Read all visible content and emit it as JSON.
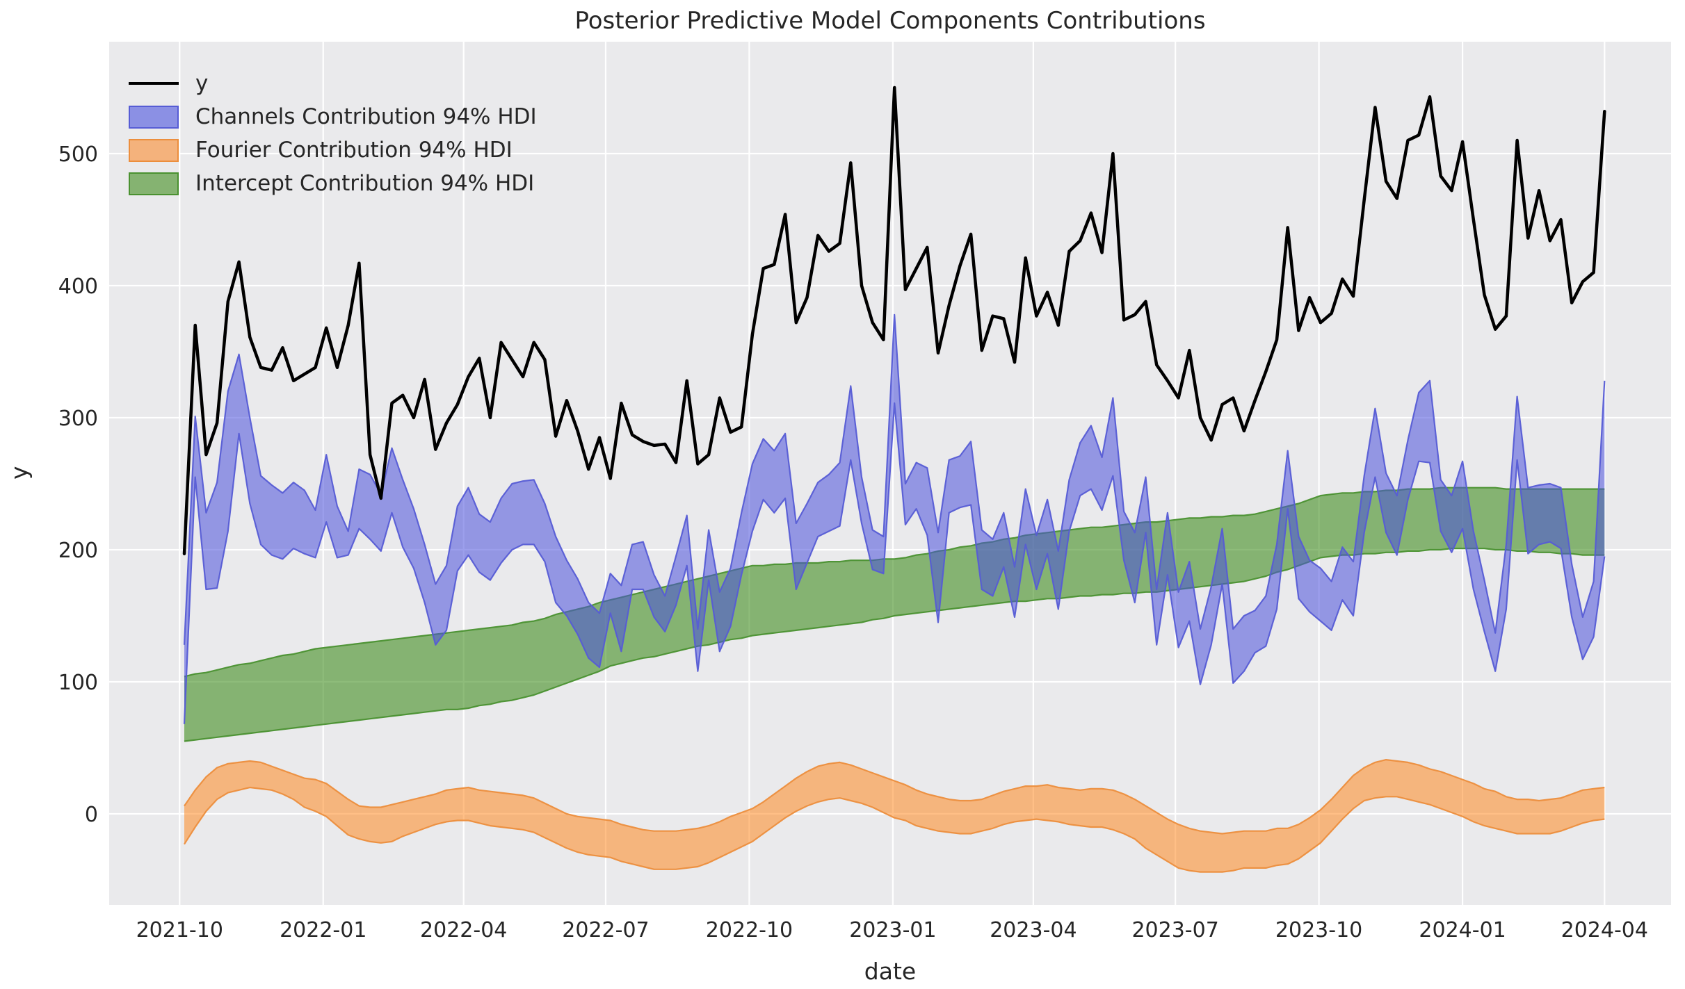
{
  "title": "Posterior Predictive Model Components Contributions",
  "xlabel": "date",
  "ylabel": "y",
  "colors": {
    "figure_bg": "#ffffff",
    "axes_bg": "#eaeaec",
    "grid": "#ffffff",
    "text": "#262626",
    "y_line": "#000000",
    "channels_fill": "#4a50dc",
    "channels_edge": "#565cd5",
    "fourier_fill": "#ff7f0e",
    "fourier_edge": "#ec8e3d",
    "intercept_fill": "#358812",
    "intercept_edge": "#4a9130"
  },
  "legend": {
    "items": [
      {
        "label": "y",
        "swatch": "line",
        "color": "#000000"
      },
      {
        "label": "Channels Contribution 94% HDI",
        "swatch": "patch",
        "fill": "#8b90e4",
        "edge": "#565cd5"
      },
      {
        "label": "Fourier Contribution 94% HDI",
        "swatch": "patch",
        "fill": "#f4b27c",
        "edge": "#ec8e3d"
      },
      {
        "label": "Intercept Contribution 94% HDI",
        "swatch": "patch",
        "fill": "#85b371",
        "edge": "#4a9130"
      }
    ]
  },
  "chart_data": {
    "type": "line",
    "title": "Posterior Predictive Model Components Contributions",
    "xlabel": "date",
    "ylabel": "y",
    "grid": true,
    "legend_position": "upper left",
    "ylim": [
      -62,
      585
    ],
    "y_ticks": [
      0,
      100,
      200,
      300,
      400,
      500
    ],
    "x_ticks": [
      {
        "date": "2021-10-01",
        "label": "2021-10"
      },
      {
        "date": "2022-01-01",
        "label": "2022-01"
      },
      {
        "date": "2022-04-01",
        "label": "2022-04"
      },
      {
        "date": "2022-07-01",
        "label": "2022-07"
      },
      {
        "date": "2022-10-01",
        "label": "2022-10"
      },
      {
        "date": "2023-01-01",
        "label": "2023-01"
      },
      {
        "date": "2023-04-01",
        "label": "2023-04"
      },
      {
        "date": "2023-07-01",
        "label": "2023-07"
      },
      {
        "date": "2023-10-01",
        "label": "2023-10"
      },
      {
        "date": "2024-01-01",
        "label": "2024-01"
      },
      {
        "date": "2024-04-01",
        "label": "2024-04"
      }
    ],
    "dates": [
      "2021-10-04",
      "2021-10-11",
      "2021-10-18",
      "2021-10-25",
      "2021-11-01",
      "2021-11-08",
      "2021-11-15",
      "2021-11-22",
      "2021-11-29",
      "2021-12-06",
      "2021-12-13",
      "2021-12-20",
      "2021-12-27",
      "2022-01-03",
      "2022-01-10",
      "2022-01-17",
      "2022-01-24",
      "2022-01-31",
      "2022-02-07",
      "2022-02-14",
      "2022-02-21",
      "2022-02-28",
      "2022-03-07",
      "2022-03-14",
      "2022-03-21",
      "2022-03-28",
      "2022-04-04",
      "2022-04-11",
      "2022-04-18",
      "2022-04-25",
      "2022-05-02",
      "2022-05-09",
      "2022-05-16",
      "2022-05-23",
      "2022-05-30",
      "2022-06-06",
      "2022-06-13",
      "2022-06-20",
      "2022-06-27",
      "2022-07-04",
      "2022-07-11",
      "2022-07-18",
      "2022-07-25",
      "2022-08-01",
      "2022-08-08",
      "2022-08-15",
      "2022-08-22",
      "2022-08-29",
      "2022-09-05",
      "2022-09-12",
      "2022-09-19",
      "2022-09-26",
      "2022-10-03",
      "2022-10-10",
      "2022-10-17",
      "2022-10-24",
      "2022-10-31",
      "2022-11-07",
      "2022-11-14",
      "2022-11-21",
      "2022-11-28",
      "2022-12-05",
      "2022-12-12",
      "2022-12-19",
      "2022-12-26",
      "2023-01-02",
      "2023-01-09",
      "2023-01-16",
      "2023-01-23",
      "2023-01-30",
      "2023-02-06",
      "2023-02-13",
      "2023-02-20",
      "2023-02-27",
      "2023-03-06",
      "2023-03-13",
      "2023-03-20",
      "2023-03-27",
      "2023-04-03",
      "2023-04-10",
      "2023-04-17",
      "2023-04-24",
      "2023-05-01",
      "2023-05-08",
      "2023-05-15",
      "2023-05-22",
      "2023-05-29",
      "2023-06-05",
      "2023-06-12",
      "2023-06-19",
      "2023-06-26",
      "2023-07-03",
      "2023-07-10",
      "2023-07-17",
      "2023-07-24",
      "2023-07-31",
      "2023-08-07",
      "2023-08-14",
      "2023-08-21",
      "2023-08-28",
      "2023-09-04",
      "2023-09-11",
      "2023-09-18",
      "2023-09-25",
      "2023-10-02",
      "2023-10-09",
      "2023-10-16",
      "2023-10-23",
      "2023-10-30",
      "2023-11-06",
      "2023-11-13",
      "2023-11-20",
      "2023-11-27",
      "2023-12-04",
      "2023-12-11",
      "2023-12-18",
      "2023-12-25",
      "2024-01-01",
      "2024-01-08",
      "2024-01-15",
      "2024-01-22",
      "2024-01-29",
      "2024-02-05",
      "2024-02-12",
      "2024-02-19",
      "2024-02-26",
      "2024-03-04",
      "2024-03-11",
      "2024-03-18",
      "2024-03-25",
      "2024-04-01"
    ],
    "series": [
      {
        "name": "y",
        "style": "line",
        "values": [
          197,
          370,
          272,
          296,
          388,
          418,
          361,
          338,
          336,
          353,
          328,
          333,
          338,
          368,
          338,
          370,
          417,
          272,
          239,
          311,
          317,
          300,
          329,
          276,
          296,
          310,
          331,
          345,
          300,
          357,
          344,
          331,
          357,
          344,
          286,
          313,
          290,
          261,
          285,
          254,
          311,
          287,
          282,
          279,
          280,
          266,
          328,
          265,
          272,
          315,
          289,
          293,
          363,
          413,
          416,
          454,
          372,
          391,
          438,
          426,
          432,
          493,
          400,
          372,
          359,
          550,
          397,
          413,
          429,
          349,
          385,
          415,
          439,
          351,
          377,
          375,
          342,
          421,
          377,
          395,
          370,
          426,
          434,
          455,
          425,
          500,
          374,
          378,
          388,
          340,
          328,
          315,
          351,
          300,
          283,
          310,
          315,
          290,
          313,
          335,
          359,
          444,
          366,
          391,
          372,
          379,
          405,
          392,
          465,
          535,
          479,
          466,
          510,
          514,
          543,
          483,
          472,
          509,
          450,
          393,
          367,
          377,
          510,
          436,
          472,
          434,
          450,
          387,
          403,
          410,
          532
        ]
      },
      {
        "name": "Channels Contribution 94% HDI",
        "style": "band",
        "upper": [
          128,
          301,
          228,
          251,
          320,
          348,
          300,
          256,
          249,
          243,
          251,
          245,
          230,
          272,
          233,
          214,
          261,
          257,
          242,
          277,
          253,
          231,
          204,
          174,
          188,
          233,
          247,
          227,
          221,
          239,
          250,
          252,
          253,
          235,
          210,
          192,
          178,
          160,
          152,
          182,
          173,
          204,
          206,
          181,
          165,
          195,
          226,
          140,
          215,
          168,
          186,
          228,
          265,
          284,
          275,
          288,
          220,
          235,
          251,
          257,
          266,
          324,
          255,
          215,
          210,
          378,
          250,
          266,
          262,
          213,
          268,
          271,
          282,
          215,
          208,
          228,
          187,
          246,
          211,
          238,
          199,
          253,
          281,
          294,
          270,
          315,
          229,
          213,
          255,
          170,
          228,
          168,
          191,
          140,
          172,
          216,
          140,
          150,
          154,
          165,
          204,
          275,
          210,
          192,
          186,
          176,
          202,
          191,
          256,
          307,
          258,
          241,
          283,
          319,
          328,
          253,
          241,
          267,
          214,
          177,
          137,
          204,
          316,
          247,
          249,
          250,
          247,
          189,
          149,
          176,
          328
        ],
        "lower": [
          68,
          255,
          170,
          171,
          214,
          288,
          235,
          204,
          196,
          193,
          201,
          197,
          194,
          221,
          194,
          196,
          216,
          208,
          199,
          228,
          202,
          186,
          160,
          128,
          139,
          184,
          196,
          183,
          177,
          190,
          200,
          204,
          204,
          191,
          160,
          150,
          136,
          118,
          111,
          152,
          123,
          170,
          170,
          149,
          138,
          158,
          188,
          108,
          177,
          123,
          142,
          181,
          214,
          238,
          228,
          239,
          170,
          190,
          210,
          214,
          218,
          268,
          220,
          185,
          182,
          311,
          219,
          231,
          211,
          145,
          228,
          232,
          234,
          170,
          165,
          187,
          149,
          204,
          170,
          197,
          155,
          214,
          241,
          246,
          230,
          256,
          192,
          160,
          213,
          128,
          181,
          126,
          146,
          98,
          128,
          174,
          99,
          108,
          122,
          127,
          155,
          231,
          163,
          153,
          146,
          139,
          162,
          150,
          213,
          255,
          213,
          196,
          238,
          267,
          266,
          214,
          198,
          216,
          170,
          138,
          108,
          155,
          268,
          197,
          204,
          206,
          201,
          149,
          117,
          134,
          195
        ]
      },
      {
        "name": "Fourier Contribution 94% HDI",
        "style": "band",
        "upper": [
          6,
          18,
          28,
          35,
          38,
          39,
          40,
          39,
          36,
          33,
          30,
          27,
          26,
          23,
          17,
          11,
          6,
          5,
          5,
          7,
          9,
          11,
          13,
          15,
          18,
          19,
          20,
          18,
          17,
          16,
          15,
          14,
          12,
          8,
          4,
          0,
          -2,
          -3,
          -4,
          -5,
          -8,
          -10,
          -12,
          -13,
          -13,
          -13,
          -12,
          -11,
          -9,
          -6,
          -2,
          1,
          4,
          9,
          15,
          21,
          27,
          32,
          36,
          38,
          39,
          37,
          34,
          31,
          28,
          25,
          22,
          18,
          15,
          13,
          11,
          10,
          10,
          11,
          14,
          17,
          19,
          21,
          21,
          22,
          20,
          19,
          18,
          19,
          19,
          18,
          15,
          11,
          6,
          1,
          -4,
          -8,
          -11,
          -13,
          -14,
          -15,
          -14,
          -13,
          -13,
          -13,
          -11,
          -11,
          -8,
          -3,
          3,
          11,
          20,
          29,
          35,
          39,
          41,
          40,
          39,
          37,
          34,
          32,
          29,
          26,
          23,
          19,
          17,
          13,
          11,
          11,
          10,
          11,
          12,
          15,
          18,
          19,
          20
        ],
        "lower": [
          -23,
          -10,
          2,
          11,
          16,
          18,
          20,
          19,
          18,
          15,
          11,
          5,
          2,
          -2,
          -9,
          -16,
          -19,
          -21,
          -22,
          -21,
          -17,
          -14,
          -11,
          -8,
          -6,
          -5,
          -5,
          -7,
          -9,
          -10,
          -11,
          -12,
          -14,
          -18,
          -22,
          -26,
          -29,
          -31,
          -32,
          -33,
          -36,
          -38,
          -40,
          -42,
          -42,
          -42,
          -41,
          -40,
          -37,
          -33,
          -29,
          -25,
          -21,
          -15,
          -9,
          -3,
          2,
          6,
          9,
          11,
          12,
          10,
          8,
          5,
          1,
          -3,
          -5,
          -9,
          -11,
          -13,
          -14,
          -15,
          -15,
          -13,
          -11,
          -8,
          -6,
          -5,
          -4,
          -5,
          -6,
          -8,
          -9,
          -10,
          -10,
          -12,
          -15,
          -19,
          -26,
          -31,
          -36,
          -41,
          -43,
          -44,
          -44,
          -44,
          -43,
          -41,
          -41,
          -41,
          -39,
          -38,
          -34,
          -28,
          -22,
          -13,
          -4,
          4,
          10,
          12,
          13,
          13,
          11,
          9,
          7,
          4,
          1,
          -2,
          -6,
          -9,
          -11,
          -13,
          -15,
          -15,
          -15,
          -15,
          -13,
          -10,
          -7,
          -5,
          -4
        ]
      },
      {
        "name": "Intercept Contribution 94% HDI",
        "style": "band",
        "upper": [
          104,
          106,
          107,
          109,
          111,
          113,
          114,
          116,
          118,
          120,
          121,
          123,
          125,
          126,
          127,
          128,
          129,
          130,
          131,
          132,
          133,
          134,
          135,
          136,
          137,
          138,
          139,
          140,
          141,
          142,
          143,
          145,
          146,
          148,
          151,
          153,
          155,
          157,
          160,
          162,
          164,
          166,
          168,
          170,
          172,
          174,
          176,
          178,
          180,
          182,
          184,
          186,
          188,
          188,
          189,
          189,
          190,
          190,
          190,
          191,
          191,
          192,
          192,
          192,
          193,
          193,
          194,
          196,
          197,
          199,
          200,
          202,
          203,
          205,
          206,
          208,
          209,
          211,
          212,
          213,
          214,
          215,
          216,
          217,
          217,
          218,
          219,
          220,
          221,
          221,
          222,
          223,
          224,
          224,
          225,
          225,
          226,
          226,
          227,
          229,
          231,
          233,
          235,
          238,
          241,
          242,
          243,
          243,
          244,
          244,
          245,
          245,
          246,
          246,
          246,
          247,
          247,
          247,
          247,
          247,
          247,
          246,
          246,
          246,
          246,
          246,
          246,
          246,
          246,
          246,
          246
        ],
        "lower": [
          55,
          56,
          57,
          58,
          59,
          60,
          61,
          62,
          63,
          64,
          65,
          66,
          67,
          68,
          69,
          70,
          71,
          72,
          73,
          74,
          75,
          76,
          77,
          78,
          79,
          79,
          80,
          82,
          83,
          85,
          86,
          88,
          90,
          93,
          96,
          99,
          102,
          105,
          108,
          112,
          114,
          116,
          118,
          119,
          121,
          123,
          125,
          127,
          128,
          130,
          132,
          133,
          135,
          136,
          137,
          138,
          139,
          140,
          141,
          142,
          143,
          144,
          145,
          147,
          148,
          150,
          151,
          152,
          153,
          154,
          155,
          156,
          157,
          158,
          159,
          160,
          161,
          161,
          162,
          163,
          163,
          164,
          165,
          165,
          166,
          166,
          167,
          167,
          168,
          168,
          169,
          170,
          171,
          172,
          173,
          174,
          175,
          176,
          178,
          180,
          183,
          185,
          188,
          191,
          194,
          195,
          196,
          196,
          197,
          197,
          198,
          198,
          199,
          199,
          200,
          200,
          201,
          201,
          201,
          201,
          200,
          200,
          199,
          199,
          198,
          198,
          197,
          197,
          196,
          196,
          196
        ]
      }
    ]
  }
}
